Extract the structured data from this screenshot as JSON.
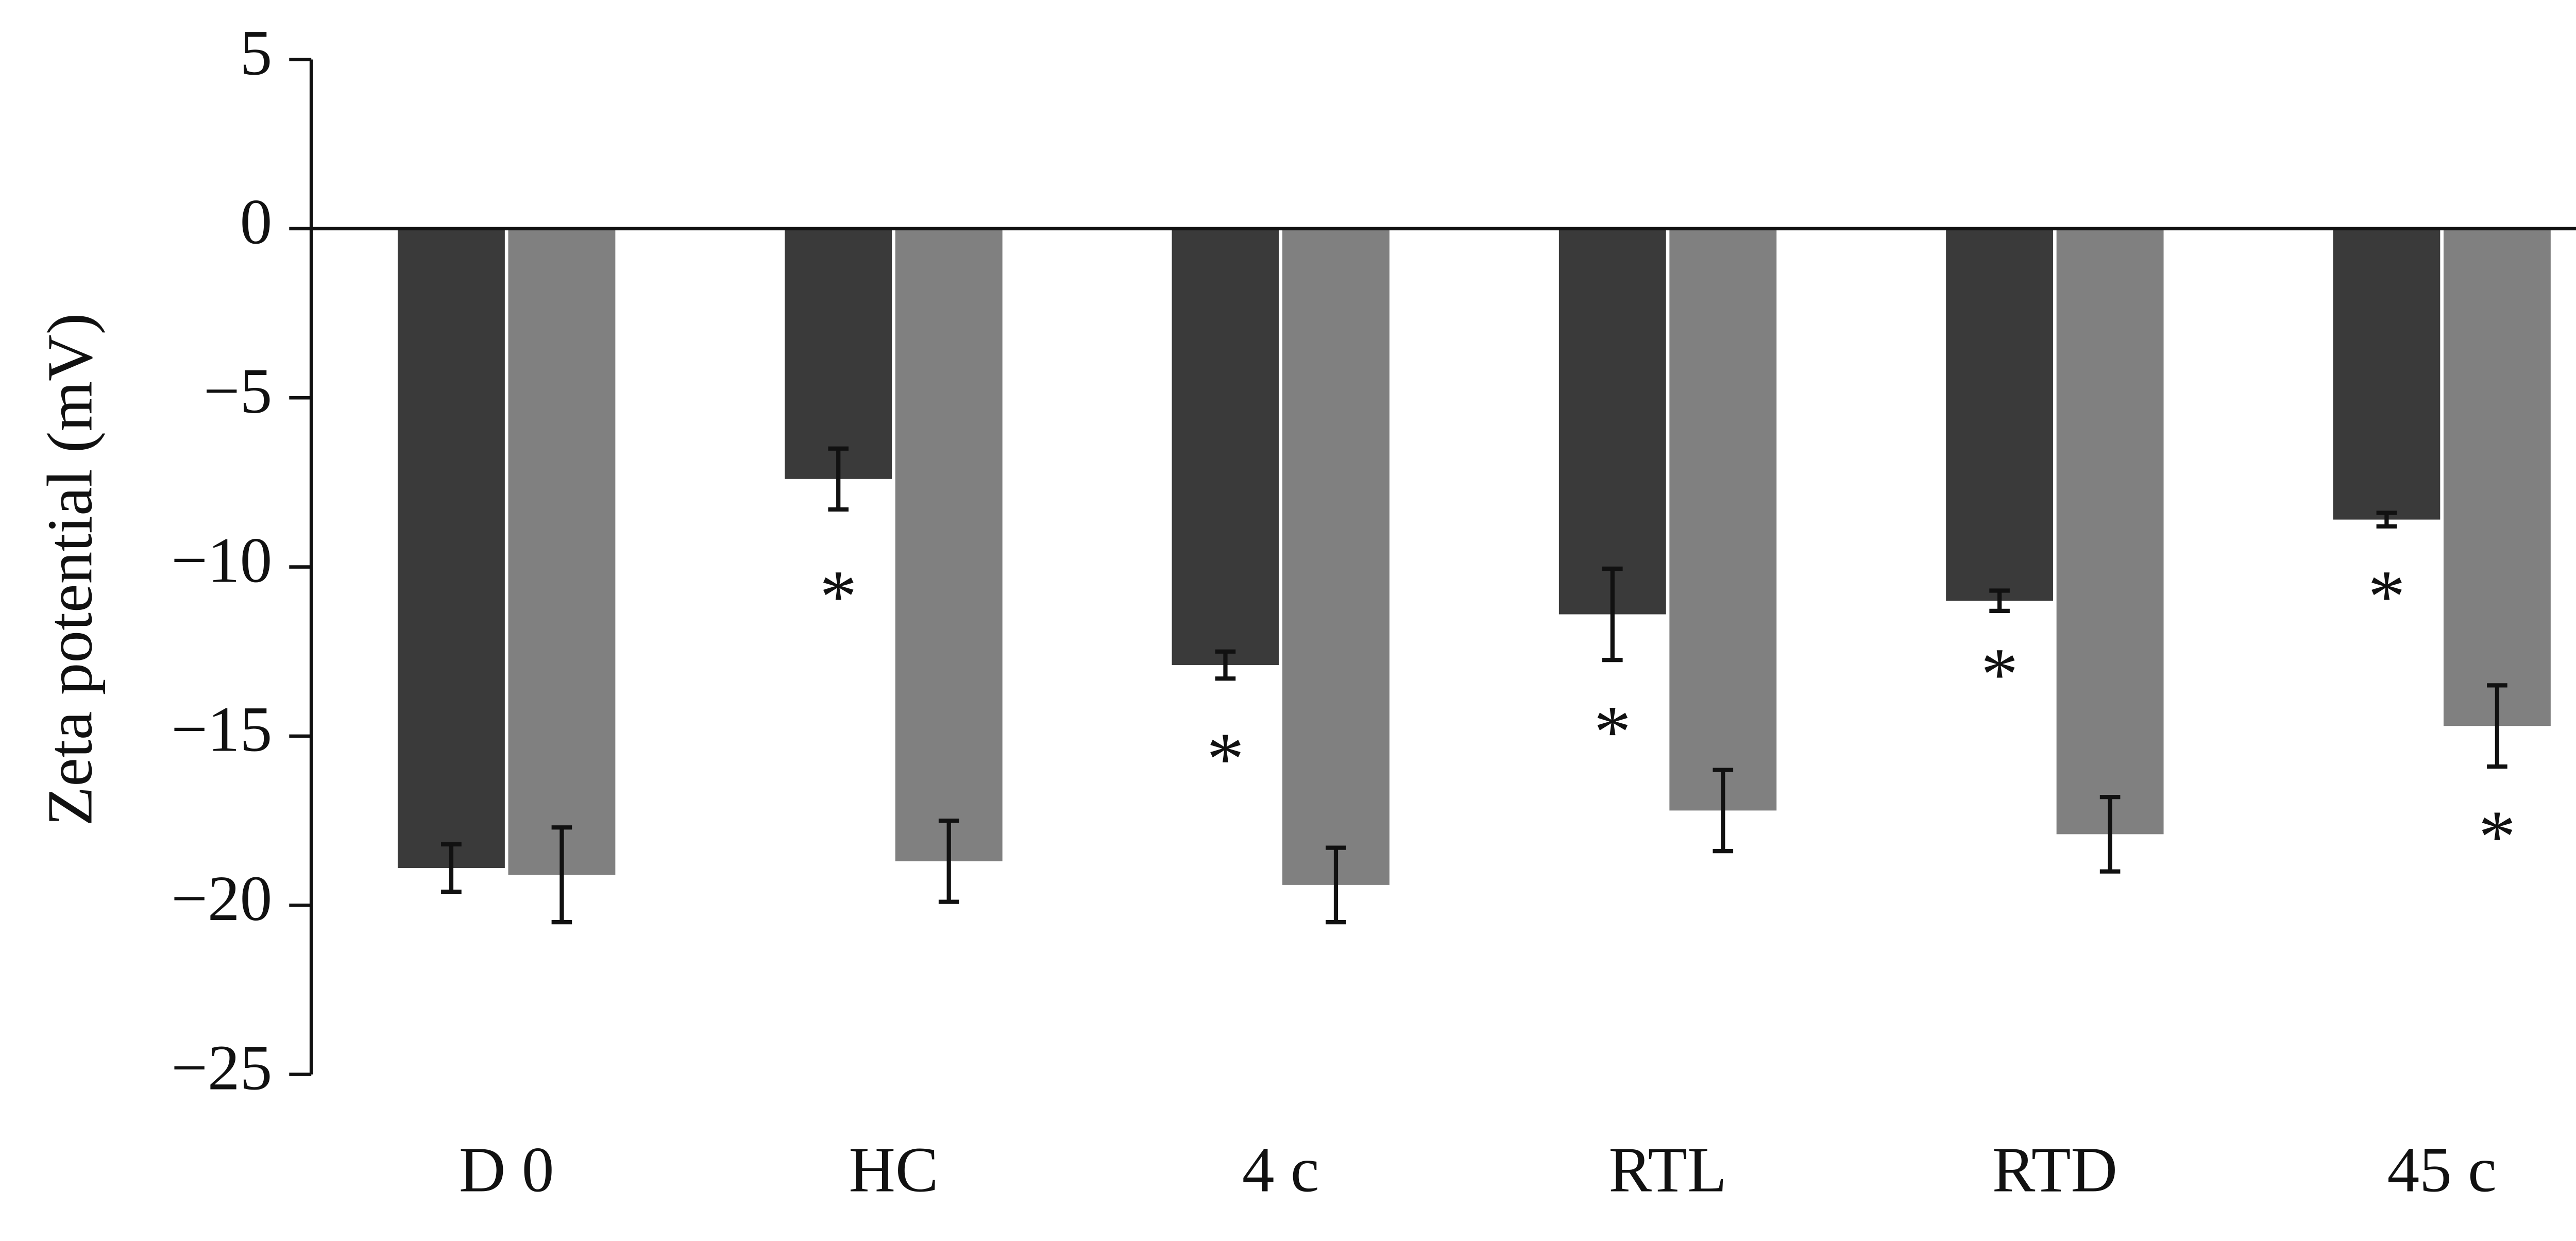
{
  "chart_data": {
    "type": "bar",
    "y_label": "Zeta potential (mV)",
    "categories": [
      "D 0",
      "HC",
      "4 c",
      "RTL",
      "RTD",
      "45 c"
    ],
    "series": [
      {
        "color": "#3a3a3a",
        "values": [
          -18.9,
          -7.4,
          -12.9,
          -11.4,
          -11.0,
          -8.6
        ],
        "errors": [
          0.7,
          0.9,
          0.4,
          1.35,
          0.3,
          0.2
        ],
        "annotations": [
          {
            "text": "*",
            "x": "HC",
            "y": -10.4
          },
          {
            "text": "*",
            "x": "4 c",
            "y": -15.2
          },
          {
            "text": "*",
            "x": "RTL",
            "y": -14.4
          },
          {
            "text": "*",
            "x": "RTD",
            "y": -12.7
          },
          {
            "text": "*",
            "x": "45 c",
            "y": -10.4
          }
        ]
      },
      {
        "color": "#808080",
        "values": [
          -19.1,
          -18.7,
          -19.4,
          -17.2,
          -17.9,
          -14.7
        ],
        "errors": [
          1.4,
          1.2,
          1.1,
          1.2,
          1.1,
          1.2
        ],
        "annotations": [
          {
            "text": "*",
            "x": "45 c",
            "y": -17.5
          }
        ]
      }
    ],
    "ylim": [
      -25,
      5
    ],
    "yticks": [
      {
        "value": -25,
        "label": "−25"
      },
      {
        "value": -20,
        "label": "−20"
      },
      {
        "value": -15,
        "label": "−15"
      },
      {
        "value": -10,
        "label": "−10"
      },
      {
        "value": -5,
        "label": "−5"
      },
      0,
      5
    ]
  }
}
